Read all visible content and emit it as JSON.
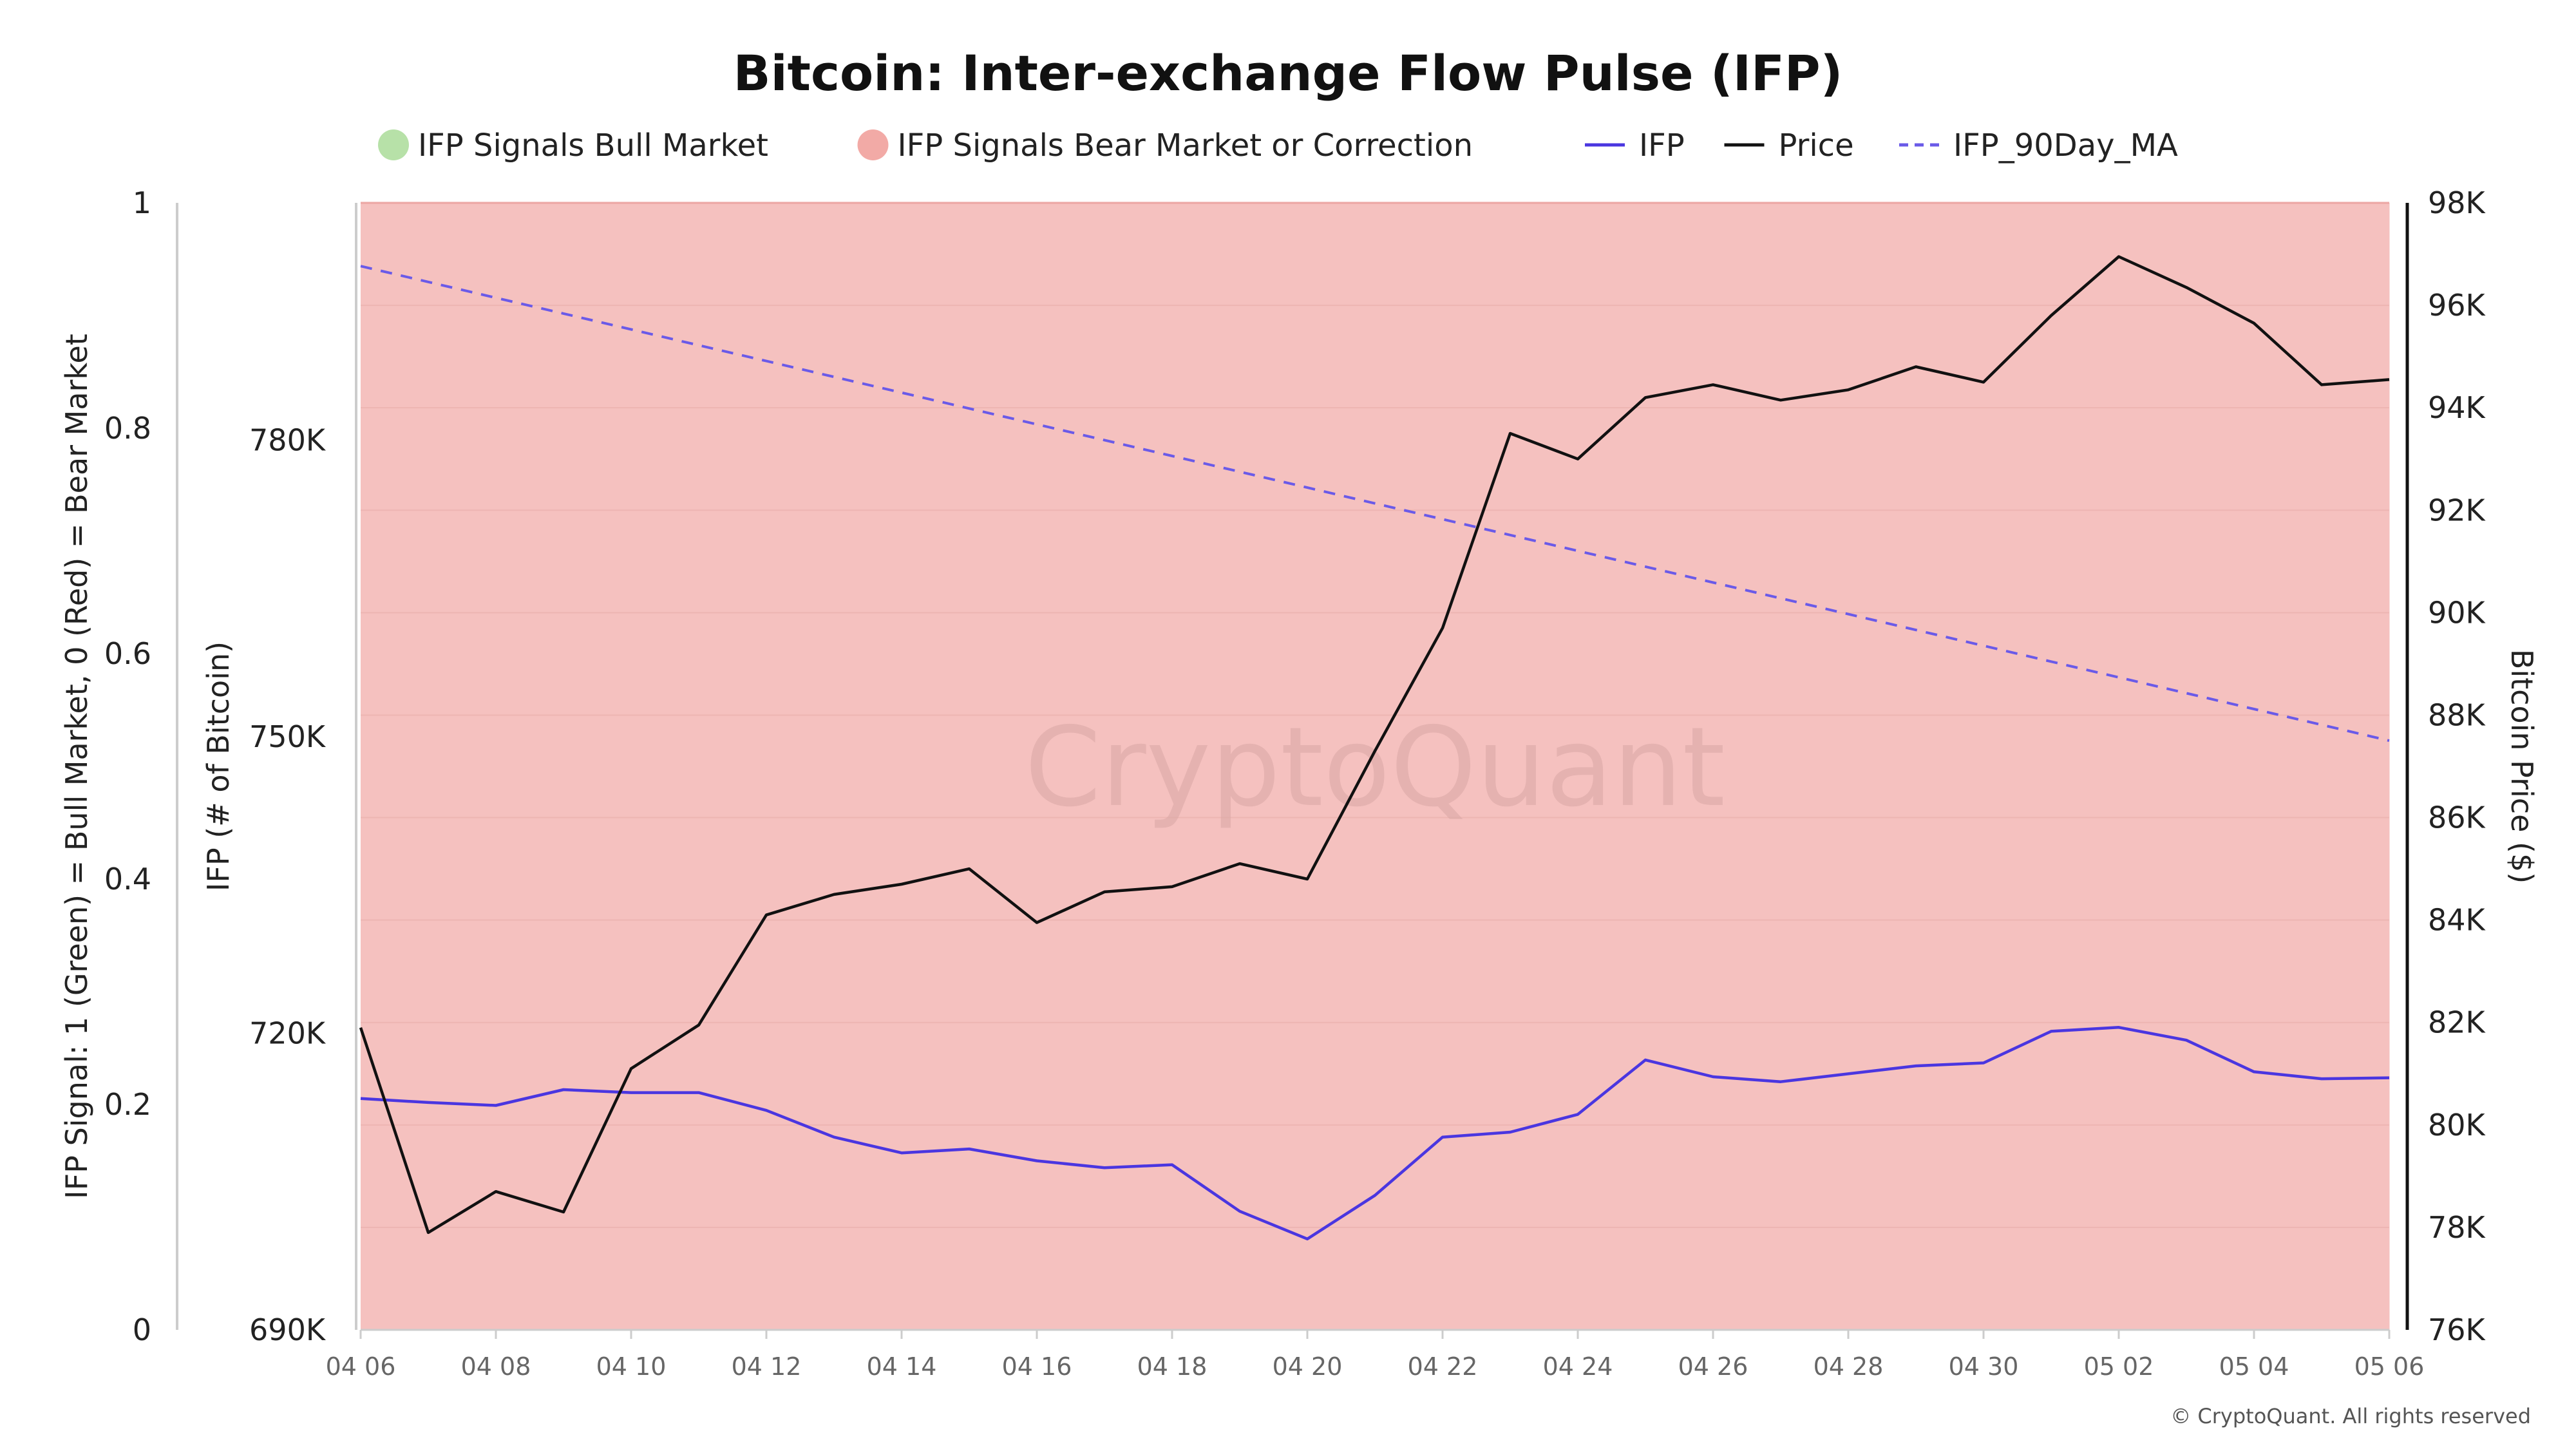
{
  "chart_data": {
    "type": "line",
    "title": "Bitcoin: Inter-exchange Flow Pulse (IFP)",
    "watermark": "CryptoQuant",
    "copyright": "© CryptoQuant. All rights reserved",
    "legend": {
      "placement": "top-center",
      "items": [
        {
          "label": "IFP Signals Bull Market",
          "kind": "dot",
          "color": "#b7e1a8"
        },
        {
          "label": "IFP Signals Bear Market or Correction",
          "kind": "dot",
          "color": "#f2aaa6"
        },
        {
          "label": "IFP",
          "kind": "line",
          "color": "#4a36e0"
        },
        {
          "label": "Price",
          "kind": "line",
          "color": "#111111"
        },
        {
          "label": "IFP_90Day_MA",
          "kind": "dash",
          "color": "#6a5ae8"
        }
      ]
    },
    "axes": {
      "signal": {
        "title": "IFP Signal: 1 (Green) = Bull Market, 0 (Red) = Bear Market",
        "range": [
          0,
          1
        ],
        "ticks": [
          0,
          0.2,
          0.4,
          0.6,
          0.8,
          1
        ],
        "tick_labels": [
          "0",
          "0.2",
          "0.4",
          "0.6",
          "0.8",
          "1"
        ]
      },
      "ifp": {
        "title": "IFP (# of Bitcoin)",
        "range": [
          690000,
          804000
        ],
        "ticks": [
          690000,
          720000,
          750000,
          780000
        ],
        "tick_labels": [
          "690K",
          "720K",
          "750K",
          "780K"
        ]
      },
      "price": {
        "title": "Bitcoin Price ($)",
        "range": [
          76000,
          98000
        ],
        "ticks": [
          76000,
          78000,
          80000,
          82000,
          84000,
          86000,
          88000,
          90000,
          92000,
          94000,
          96000,
          98000
        ],
        "tick_labels": [
          "76K",
          "78K",
          "80K",
          "82K",
          "84K",
          "86K",
          "88K",
          "90K",
          "92K",
          "94K",
          "96K",
          "98K"
        ]
      },
      "x": {
        "tick_labels": [
          "04 06",
          "04 08",
          "04 10",
          "04 12",
          "04 14",
          "04 16",
          "04 18",
          "04 20",
          "04 22",
          "04 24",
          "04 26",
          "04 28",
          "04 30",
          "05 02",
          "05 04",
          "05 06"
        ]
      }
    },
    "x": [
      "04 06",
      "04 07",
      "04 08",
      "04 09",
      "04 10",
      "04 11",
      "04 12",
      "04 13",
      "04 14",
      "04 15",
      "04 16",
      "04 17",
      "04 18",
      "04 19",
      "04 20",
      "04 21",
      "04 22",
      "04 23",
      "04 24",
      "04 25",
      "04 26",
      "04 27",
      "04 28",
      "04 29",
      "04 30",
      "05 01",
      "05 02",
      "05 03",
      "05 04",
      "05 05",
      "05 06"
    ],
    "series": [
      {
        "name": "IFP Signals Bear Market or Correction",
        "axis": "signal",
        "type": "area",
        "color": "#f5c1bf",
        "values": [
          0,
          0,
          0,
          0,
          0,
          0,
          0,
          0,
          0,
          0,
          0,
          0,
          0,
          0,
          0,
          0,
          0,
          0,
          0,
          0,
          0,
          0,
          0,
          0,
          0,
          0,
          0,
          0,
          0,
          0,
          0
        ]
      },
      {
        "name": "IFP",
        "axis": "ifp",
        "type": "line",
        "color": "#4a36e0",
        "values": [
          713400,
          713000,
          712700,
          714300,
          714000,
          714000,
          712200,
          709500,
          707900,
          708300,
          707100,
          706400,
          706700,
          702000,
          699200,
          703600,
          709500,
          710000,
          711800,
          717300,
          715600,
          715100,
          715900,
          716700,
          717000,
          720200,
          720600,
          719300,
          716100,
          715400,
          715500
        ]
      },
      {
        "name": "Price",
        "axis": "price",
        "type": "line",
        "color": "#111111",
        "values": [
          81900,
          77900,
          78700,
          78300,
          81100,
          81950,
          84100,
          84500,
          84700,
          85000,
          83950,
          84550,
          84650,
          85100,
          84800,
          87300,
          89700,
          93500,
          93000,
          94200,
          94450,
          94150,
          94350,
          94800,
          94500,
          95800,
          96950,
          96350,
          95650,
          94450,
          94550
        ]
      },
      {
        "name": "IFP_90Day_MA",
        "axis": "ifp",
        "type": "line",
        "dash": true,
        "color": "#6a5ae8",
        "values": [
          797600,
          796000,
          794400,
          792800,
          791200,
          789600,
          788000,
          786400,
          784800,
          783200,
          781600,
          780000,
          778400,
          776800,
          775200,
          773600,
          772000,
          770400,
          768800,
          767200,
          765600,
          764000,
          762400,
          760800,
          759200,
          757600,
          756000,
          754400,
          752800,
          751200,
          749600
        ]
      }
    ]
  }
}
